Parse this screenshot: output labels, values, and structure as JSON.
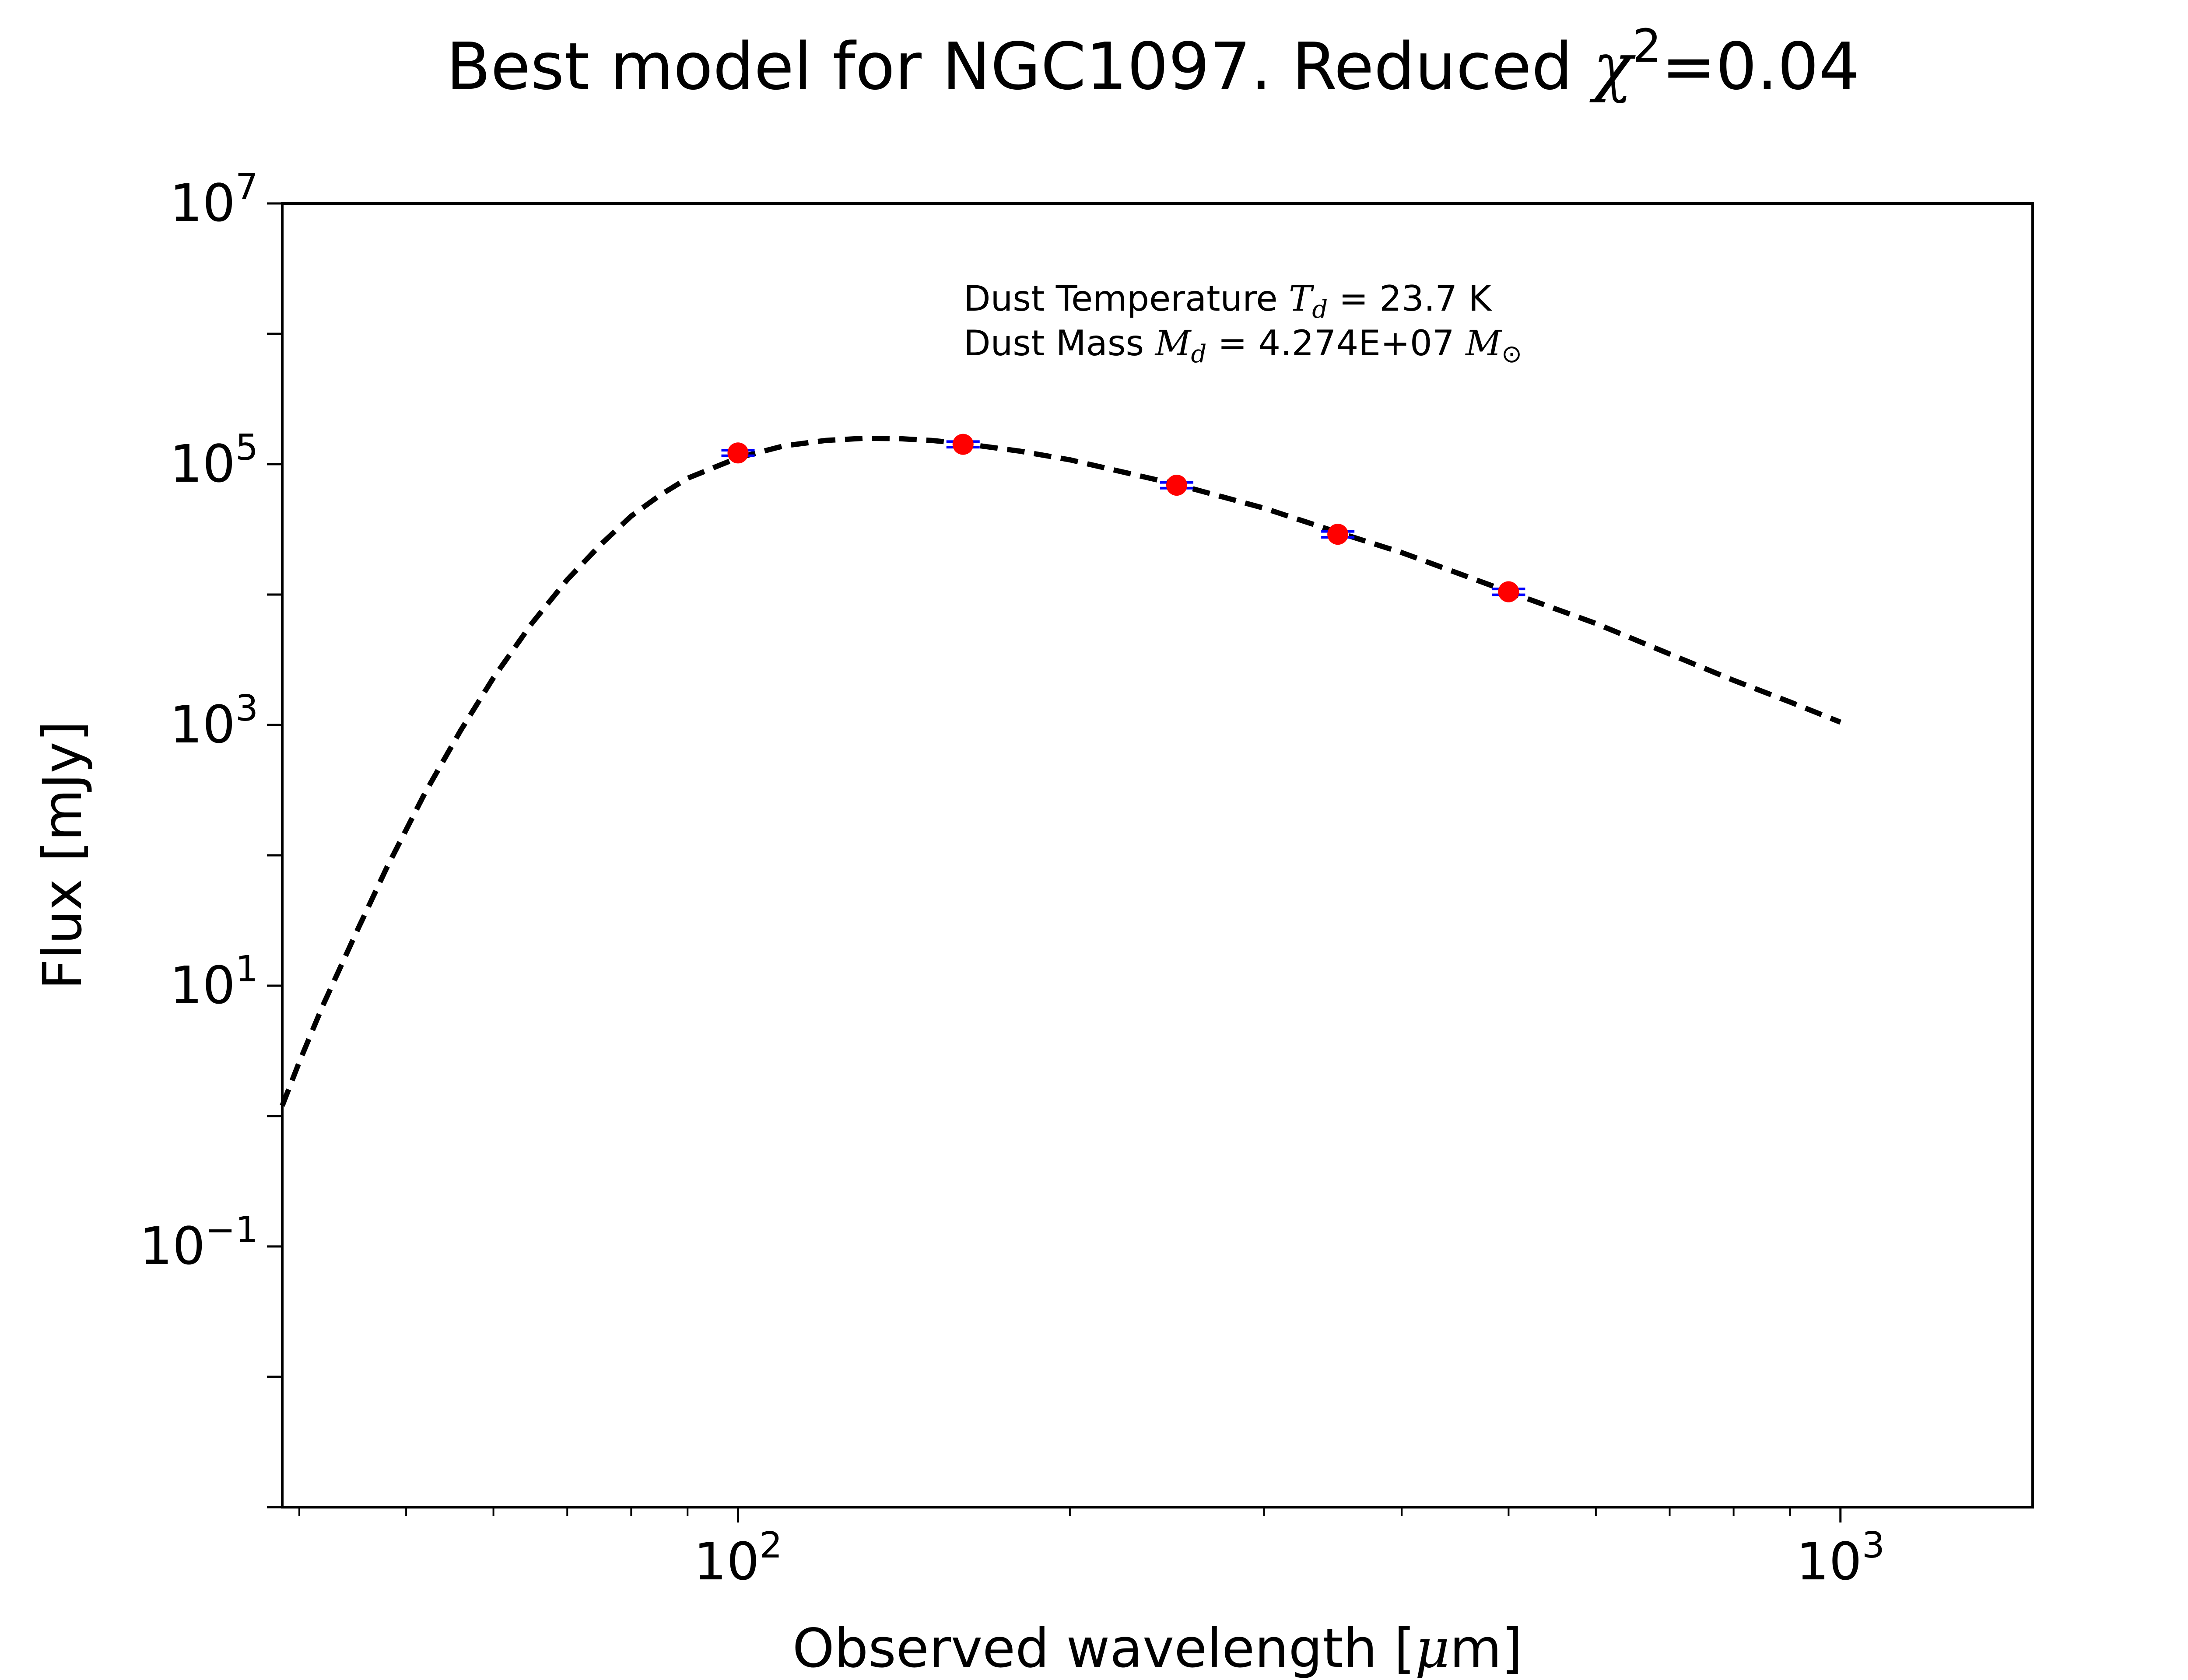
{
  "chart_data": {
    "type": "scatter",
    "title_main": "Best model for NGC1097. Reduced ",
    "title_chi": "χ",
    "title_exp": "2",
    "title_value": "=0.04",
    "xlabel_main": "Observed wavelength [",
    "xlabel_mu": "μ",
    "xlabel_end": "m]",
    "ylabel": "Flux [mJy]",
    "xscale": "log",
    "yscale": "log",
    "xlim": [
      38.6,
      1494
    ],
    "ylim": [
      0.001,
      10000000
    ],
    "grid": false,
    "x_ticks": [
      {
        "base": "10",
        "exp": "2",
        "value": 100
      },
      {
        "base": "10",
        "exp": "3",
        "value": 1000
      }
    ],
    "y_ticks": [
      {
        "base": "10",
        "exp": "−1",
        "value": 0.1
      },
      {
        "base": "10",
        "exp": "1",
        "value": 10
      },
      {
        "base": "10",
        "exp": "3",
        "value": 1000
      },
      {
        "base": "10",
        "exp": "5",
        "value": 100000
      },
      {
        "base": "10",
        "exp": "7",
        "value": 10000000
      }
    ],
    "annotation": {
      "line1_prefix": "Dust Temperature ",
      "line1_sym": "T",
      "line1_sub": "d",
      "line1_value": " = 23.7 K",
      "line2_prefix": "Dust Mass ",
      "line2_sym": "M",
      "line2_sub": "d",
      "line2_value": " = 4.274E+07 ",
      "line2_unit_sym": "M",
      "line2_unit_sub": "⊙"
    },
    "observed_points": {
      "color": "#ff0000",
      "errorbar_color": "#0000ff",
      "points": [
        {
          "x": 100,
          "y": 122000,
          "yerr": 6000
        },
        {
          "x": 160,
          "y": 142000,
          "yerr": 7000
        },
        {
          "x": 250,
          "y": 69000,
          "yerr": 3500
        },
        {
          "x": 350,
          "y": 29000,
          "yerr": 1500
        },
        {
          "x": 500,
          "y": 10500,
          "yerr": 550
        }
      ]
    },
    "model_curve": {
      "style": "dashed",
      "color": "#000000",
      "points": [
        {
          "x": 38.6,
          "y": 1.2
        },
        {
          "x": 40,
          "y": 2.6
        },
        {
          "x": 42,
          "y": 7.0
        },
        {
          "x": 45,
          "y": 25
        },
        {
          "x": 48,
          "y": 80
        },
        {
          "x": 52,
          "y": 300
        },
        {
          "x": 56,
          "y": 900
        },
        {
          "x": 60,
          "y": 2300
        },
        {
          "x": 65,
          "y": 6000
        },
        {
          "x": 70,
          "y": 13000
        },
        {
          "x": 75,
          "y": 24000
        },
        {
          "x": 80,
          "y": 40000
        },
        {
          "x": 85,
          "y": 58000
        },
        {
          "x": 90,
          "y": 78000
        },
        {
          "x": 100,
          "y": 112000
        },
        {
          "x": 110,
          "y": 138000
        },
        {
          "x": 120,
          "y": 152000
        },
        {
          "x": 130,
          "y": 158000
        },
        {
          "x": 140,
          "y": 157000
        },
        {
          "x": 150,
          "y": 152000
        },
        {
          "x": 160,
          "y": 144000
        },
        {
          "x": 180,
          "y": 126000
        },
        {
          "x": 200,
          "y": 108000
        },
        {
          "x": 250,
          "y": 70000
        },
        {
          "x": 300,
          "y": 46000
        },
        {
          "x": 350,
          "y": 30000
        },
        {
          "x": 400,
          "y": 21000
        },
        {
          "x": 500,
          "y": 10500
        },
        {
          "x": 600,
          "y": 6000
        },
        {
          "x": 700,
          "y": 3500
        },
        {
          "x": 800,
          "y": 2200
        },
        {
          "x": 900,
          "y": 1500
        },
        {
          "x": 1000,
          "y": 1050
        }
      ]
    }
  }
}
